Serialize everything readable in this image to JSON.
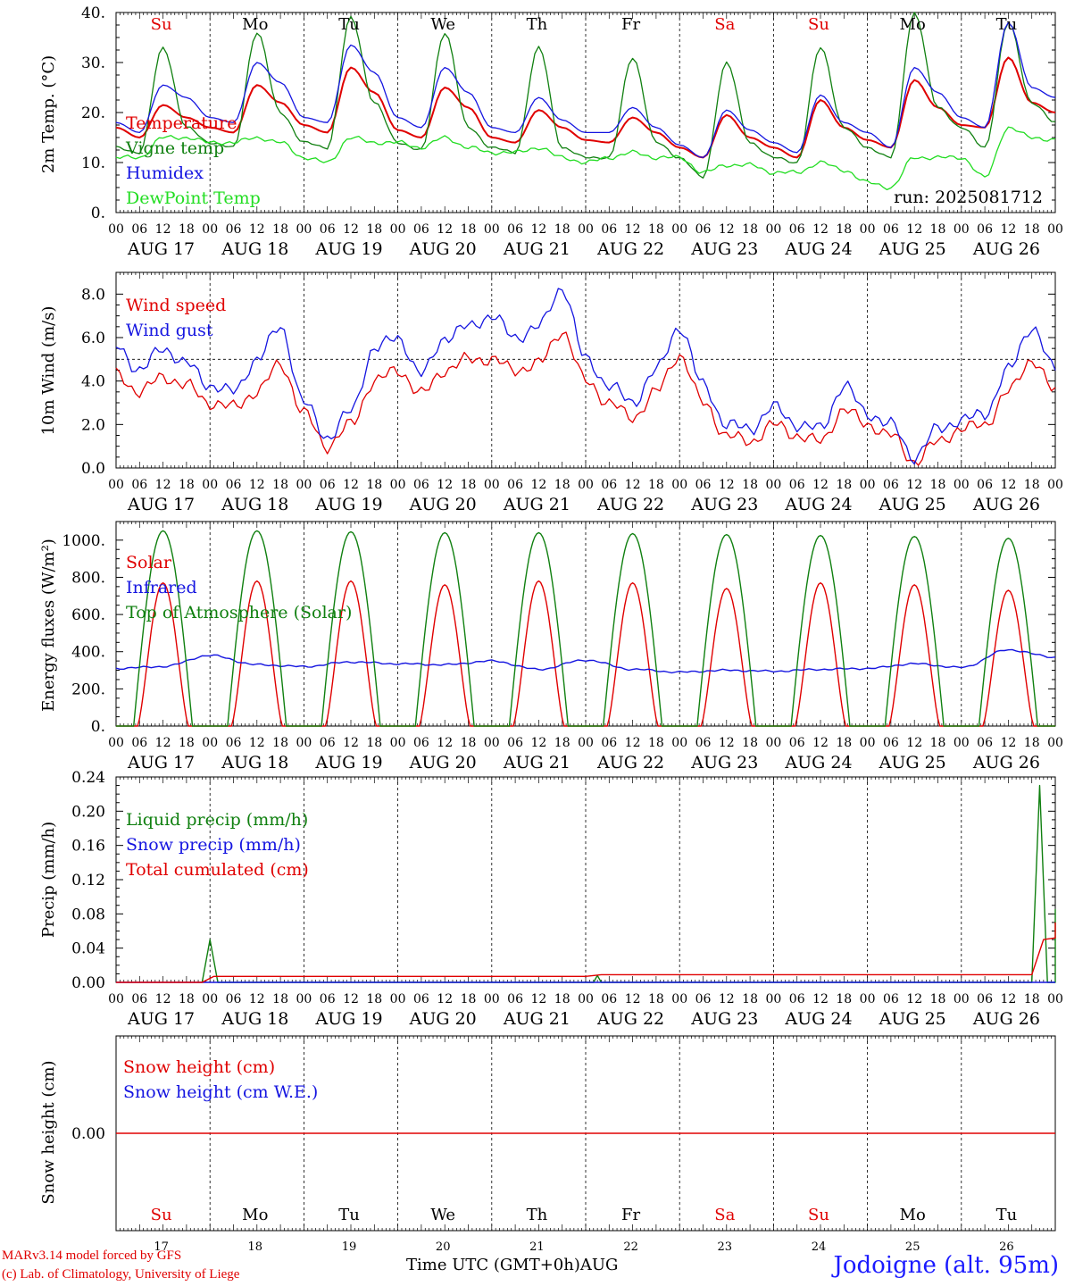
{
  "run_label": "run: 2025081712",
  "footer": {
    "credit_line1": "MARv3.14 model forced by GFS",
    "credit_line2": "(c) Lab. of Climatology, University of Liege",
    "time_axis_label": "Time UTC (GMT+0h)",
    "month_label": "AUG",
    "station": "Jodoigne (alt. 95m)"
  },
  "hours_ticks": [
    "00",
    "06",
    "12",
    "18"
  ],
  "date_labels": [
    "AUG 17",
    "AUG 18",
    "AUG 19",
    "AUG 20",
    "AUG 21",
    "AUG 22",
    "AUG 23",
    "AUG 24",
    "AUG 25",
    "AUG 26"
  ],
  "day_numbers": [
    "17",
    "18",
    "19",
    "20",
    "21",
    "22",
    "23",
    "24",
    "25",
    "26"
  ],
  "weekdays": [
    "Su",
    "Mo",
    "Tu",
    "We",
    "Th",
    "Fr",
    "Sa",
    "Su",
    "Mo",
    "Tu"
  ],
  "weekday_colors": [
    "#e00000",
    "#000000",
    "#000000",
    "#000000",
    "#000000",
    "#000000",
    "#e00000",
    "#e00000",
    "#000000",
    "#000000"
  ],
  "colors": {
    "red": "#e00000",
    "green": "#108010",
    "blue": "#1515e0",
    "lightgreen": "#22dd22",
    "grey": "#555555"
  },
  "chart_data": [
    {
      "type": "line",
      "ylabel": "2m Temp. (°C)",
      "ylim": [
        0,
        40
      ],
      "yticks": [
        "0.",
        "10.",
        "20.",
        "30.",
        "40."
      ],
      "x_hours_keypoints": [
        0,
        6,
        12,
        18,
        24,
        30,
        36,
        42,
        48,
        54,
        60,
        66,
        72,
        78,
        84,
        90,
        96,
        102,
        108,
        114,
        120,
        126,
        132,
        138,
        144,
        150,
        156,
        162,
        168,
        174,
        180,
        186,
        192,
        198,
        204,
        210,
        216,
        222,
        228,
        234,
        240
      ],
      "series": [
        {
          "name": "Temperature",
          "color": "#e00000",
          "values": [
            17,
            15,
            21.5,
            19,
            17,
            16,
            25.5,
            22,
            17.5,
            16,
            29,
            24,
            16.5,
            15,
            25,
            21,
            15,
            14,
            20.5,
            17,
            14.5,
            14,
            19,
            16,
            13,
            11,
            19.5,
            15,
            13,
            11,
            22.5,
            17,
            14.5,
            13,
            26.5,
            21,
            17.5,
            17,
            31,
            22,
            20
          ]
        },
        {
          "name": "Vigne temp",
          "color": "#108010",
          "values": [
            13,
            12,
            33,
            17,
            14,
            13,
            36,
            20,
            14,
            13,
            39,
            22,
            14,
            12.5,
            36,
            17,
            13,
            12,
            33,
            13,
            11,
            11,
            31,
            14,
            11,
            7,
            30,
            14,
            11,
            10,
            33,
            17,
            13,
            11,
            40,
            21,
            17,
            13,
            38,
            22,
            18
          ]
        },
        {
          "name": "Humidex",
          "color": "#1515e0",
          "values": [
            18,
            16,
            25.5,
            23,
            19,
            18,
            30,
            26,
            19,
            18,
            33.5,
            28,
            19,
            17,
            29,
            24,
            17,
            16,
            23,
            18.5,
            16,
            16,
            21,
            17,
            13.5,
            11,
            20.5,
            16.5,
            14,
            12,
            23.5,
            18,
            16,
            13,
            29,
            24,
            19,
            17,
            38,
            25,
            23
          ]
        },
        {
          "name": "DewPoint Temp",
          "color": "#22dd22",
          "values": [
            11,
            11,
            15,
            15,
            14,
            14,
            15,
            14,
            11,
            10,
            15,
            14,
            14,
            13,
            15,
            13,
            12,
            12,
            13,
            11,
            10,
            11,
            12,
            11,
            11,
            8,
            9.5,
            9.5,
            8,
            8,
            10,
            8.5,
            6,
            5,
            11,
            11,
            11,
            7,
            17,
            15,
            14.5
          ]
        }
      ]
    },
    {
      "type": "line",
      "ylabel": "10m Wind (m/s)",
      "ylim": [
        0,
        9
      ],
      "yticks": [
        "0.0",
        "2.0",
        "4.0",
        "6.0",
        "8.0"
      ],
      "reference_line": 5,
      "x_hours_keypoints": [
        0,
        6,
        12,
        18,
        24,
        30,
        36,
        42,
        48,
        54,
        60,
        66,
        72,
        78,
        84,
        90,
        96,
        102,
        108,
        114,
        120,
        126,
        132,
        138,
        144,
        150,
        156,
        162,
        168,
        174,
        180,
        186,
        192,
        198,
        204,
        210,
        216,
        222,
        228,
        234,
        240
      ],
      "series": [
        {
          "name": "Wind speed",
          "color": "#e00000",
          "values": [
            4.3,
            3.5,
            4.2,
            3.8,
            3.0,
            2.8,
            3.5,
            4.8,
            2.5,
            1.0,
            2.0,
            4.0,
            4.5,
            3.4,
            4.5,
            5.0,
            5.0,
            4.5,
            4.8,
            6.3,
            4.0,
            3.0,
            2.3,
            3.5,
            5.2,
            3.0,
            1.5,
            1.2,
            2.0,
            1.5,
            1.2,
            2.7,
            2.0,
            1.5,
            0.3,
            1.2,
            1.8,
            2.0,
            3.5,
            5.0,
            3.5
          ]
        },
        {
          "name": "Wind gust",
          "color": "#1515e0",
          "values": [
            5.6,
            4.5,
            5.5,
            4.8,
            3.8,
            3.5,
            5.0,
            6.5,
            3.0,
            1.4,
            2.6,
            5.5,
            6.0,
            4.3,
            6.0,
            6.5,
            7.0,
            6.0,
            6.5,
            8.3,
            5.0,
            3.8,
            3.0,
            4.5,
            6.5,
            3.8,
            2.0,
            1.8,
            2.8,
            2.0,
            1.8,
            3.8,
            2.5,
            2.0,
            0.5,
            1.8,
            2.2,
            2.5,
            4.5,
            6.5,
            4.5
          ]
        }
      ]
    },
    {
      "type": "line",
      "ylabel": "Energy fluxes (W/m²)",
      "ylim": [
        0,
        1100
      ],
      "yticks": [
        "0.",
        "200.",
        "400.",
        "600.",
        "800.",
        "1000."
      ],
      "series": [
        {
          "name": "Solar",
          "color": "#e00000",
          "peaks": [
            770,
            780,
            780,
            760,
            780,
            770,
            740,
            770,
            760,
            730
          ]
        },
        {
          "name": "Infrared",
          "color": "#1515e0",
          "x_hours_keypoints": [
            0,
            12,
            24,
            36,
            48,
            60,
            72,
            84,
            96,
            108,
            120,
            132,
            144,
            156,
            168,
            180,
            192,
            204,
            216,
            228,
            240
          ],
          "values": [
            310,
            320,
            380,
            330,
            320,
            345,
            335,
            330,
            350,
            305,
            355,
            305,
            290,
            300,
            295,
            305,
            310,
            335,
            315,
            410,
            370
          ]
        },
        {
          "name": "Top of Atmosphere (Solar)",
          "color": "#108010",
          "peaks": [
            1050,
            1050,
            1045,
            1040,
            1040,
            1035,
            1030,
            1025,
            1020,
            1010
          ]
        }
      ]
    },
    {
      "type": "line",
      "ylabel": "Precip (mm/h)",
      "ylim": [
        0,
        0.24
      ],
      "yticks": [
        "0.00",
        "0.04",
        "0.08",
        "0.12",
        "0.16",
        "0.20",
        "0.24"
      ],
      "series": [
        {
          "name": "Liquid precip (mm/h)",
          "color": "#108010",
          "points": [
            [
              22,
              0
            ],
            [
              24,
              0.05
            ],
            [
              26,
              0
            ],
            [
              122,
              0
            ],
            [
              123,
              0.008
            ],
            [
              124,
              0
            ],
            [
              234,
              0
            ],
            [
              236,
              0.23
            ],
            [
              238,
              0
            ],
            [
              240,
              0
            ],
            [
              242,
              0.085
            ],
            [
              244,
              0
            ]
          ]
        },
        {
          "name": "Snow precip (mm/h)",
          "color": "#1515e0",
          "points": [
            [
              0,
              0
            ],
            [
              240,
              0
            ]
          ]
        },
        {
          "name": "Total cumulated (cm)",
          "color": "#e00000",
          "points": [
            [
              0,
              0
            ],
            [
              22,
              0
            ],
            [
              25,
              0.007
            ],
            [
              120,
              0.007
            ],
            [
              124,
              0.009
            ],
            [
              234,
              0.009
            ],
            [
              237,
              0.05
            ],
            [
              240,
              0.052
            ],
            [
              243,
              0.07
            ],
            [
              245,
              0.07
            ]
          ]
        }
      ]
    },
    {
      "type": "line",
      "ylabel": "Snow height (cm)",
      "yticks": [
        "0.00"
      ],
      "series": [
        {
          "name": "Snow height (cm)",
          "color": "#e00000",
          "values": [
            0
          ]
        },
        {
          "name": "Snow height (cm W.E.)",
          "color": "#1515e0",
          "values": [
            0
          ]
        }
      ]
    }
  ]
}
